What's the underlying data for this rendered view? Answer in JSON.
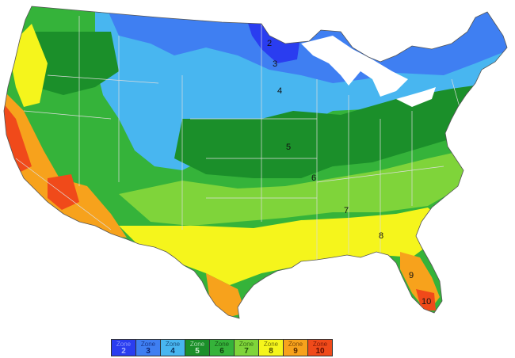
{
  "colors": {
    "zone2": "#2a3df0",
    "zone3": "#3f7ff2",
    "zone4": "#48b6f0",
    "zone5": "#1b8f2a",
    "zone6": "#35b33a",
    "zone7": "#7fd43a",
    "zone8": "#f5f51c",
    "zone9": "#f7a21c",
    "zone10": "#f04a1a",
    "lakes": "#ffffff",
    "borders": "#dddddd"
  },
  "map_labels": [
    "2",
    "3",
    "4",
    "5",
    "6",
    "7",
    "8",
    "9",
    "10"
  ],
  "legend": [
    {
      "word": "Zone",
      "num": "2",
      "color": "#2a3df0",
      "text": "#a8b4ff"
    },
    {
      "word": "Zone",
      "num": "3",
      "color": "#3f7ff2",
      "text": "#0b1f6a"
    },
    {
      "word": "Zone",
      "num": "4",
      "color": "#48b6f0",
      "text": "#0b2f5a"
    },
    {
      "word": "Zone",
      "num": "5",
      "color": "#1b8f2a",
      "text": "#cfeecf"
    },
    {
      "word": "Zone",
      "num": "6",
      "color": "#35b33a",
      "text": "#0c3a0c"
    },
    {
      "word": "Zone",
      "num": "7",
      "color": "#7fd43a",
      "text": "#1e4a08"
    },
    {
      "word": "Zone",
      "num": "8",
      "color": "#f5f51c",
      "text": "#4a4a00"
    },
    {
      "word": "Zone",
      "num": "9",
      "color": "#f7a21c",
      "text": "#5a2a00"
    },
    {
      "word": "Zone",
      "num": "10",
      "color": "#f04a1a",
      "text": "#5a0a00"
    }
  ]
}
